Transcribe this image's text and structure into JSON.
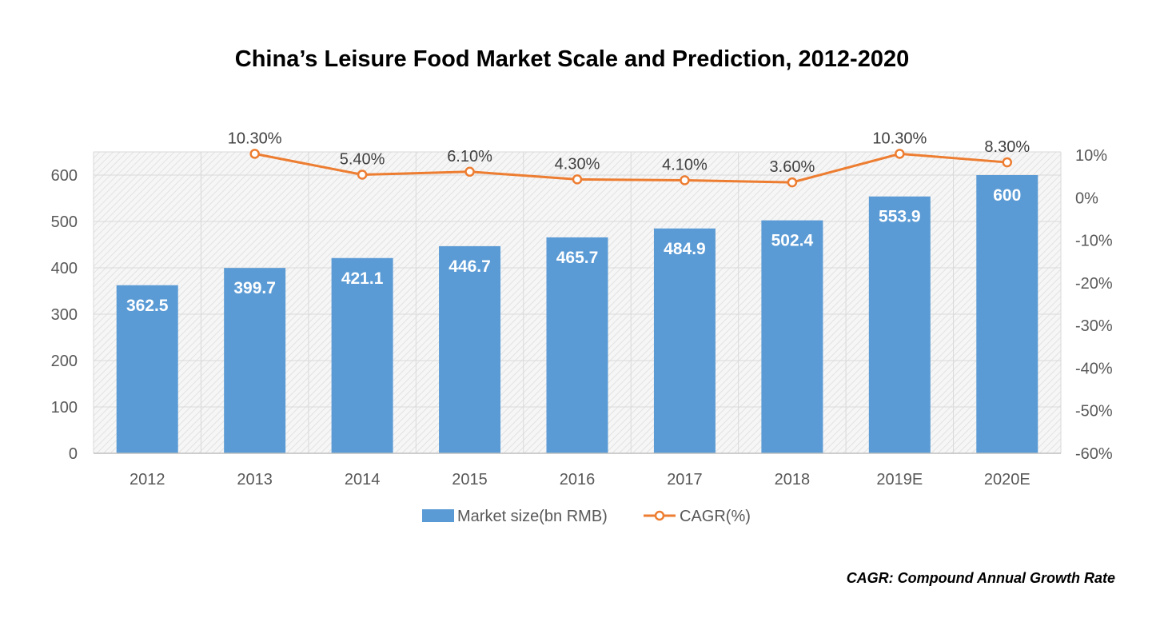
{
  "chart_data": {
    "type": "bar",
    "title": "China’s Leisure Food Market Scale and Prediction, 2012-2020",
    "categories": [
      "2012",
      "2013",
      "2014",
      "2015",
      "2016",
      "2017",
      "2018",
      "2019E",
      "2020E"
    ],
    "series": [
      {
        "name": "Market size(bn RMB)",
        "type": "bar",
        "axis": "left",
        "values": [
          362.5,
          399.7,
          421.1,
          446.7,
          465.7,
          484.9,
          502.4,
          553.9,
          600
        ],
        "labels": [
          "362.5",
          "399.7",
          "421.1",
          "446.7",
          "465.7",
          "484.9",
          "502.4",
          "553.9",
          "600"
        ]
      },
      {
        "name": "CAGR(%)",
        "type": "line",
        "axis": "right",
        "values": [
          null,
          10.3,
          5.4,
          6.1,
          4.3,
          4.1,
          3.6,
          10.3,
          8.3
        ],
        "labels": [
          "",
          "10.30%",
          "5.40%",
          "6.10%",
          "4.30%",
          "4.10%",
          "3.60%",
          "10.30%",
          "8.30%"
        ]
      }
    ],
    "y_left": {
      "min": 0,
      "max": 600,
      "ticks": [
        "0",
        "100",
        "200",
        "300",
        "400",
        "500",
        "600"
      ]
    },
    "y_right": {
      "min": -60,
      "max": 10,
      "ticks": [
        "-60%",
        "-50%",
        "-40%",
        "-30%",
        "-20%",
        "-10%",
        "0%",
        "10%"
      ]
    },
    "grid": true,
    "legend": "bottom",
    "colors": {
      "bar": "#5b9bd5",
      "line": "#ed7d31"
    }
  },
  "footnote": "CAGR: Compound Annual Growth Rate"
}
